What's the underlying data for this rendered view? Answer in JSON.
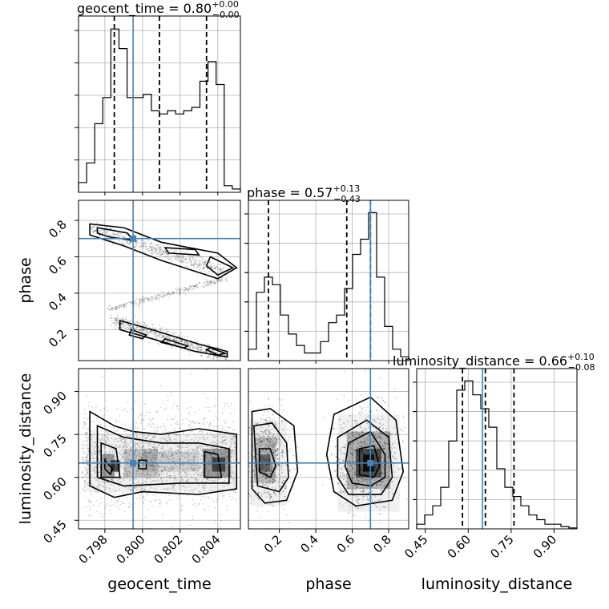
{
  "chart_data": {
    "type": "corner",
    "parameters": [
      {
        "name": "geocent_time",
        "xlabel": "geocent_time",
        "ylabel": "",
        "range": [
          0.7966,
          0.8052
        ],
        "ticks": [
          0.798,
          0.8,
          0.802,
          0.804
        ],
        "tick_labels": [
          "0.798",
          "0.800",
          "0.802",
          "0.804"
        ],
        "truth": 0.7995,
        "quantiles": [
          0.7985,
          0.8009,
          0.8034
        ],
        "title": {
          "prefix": "geocent_time = ",
          "value": "0.80",
          "plus": "+0.00",
          "minus": "−0.00"
        },
        "hist": [
          0.3,
          0.9,
          2.1,
          2.9,
          5.0,
          4.4,
          2.9,
          2.9,
          3.0,
          2.5,
          2.4,
          2.5,
          2.4,
          2.5,
          2.6,
          3.4,
          4.0,
          3.3,
          0.2,
          0.1
        ]
      },
      {
        "name": "phase",
        "xlabel": "phase",
        "ylabel": "phase",
        "range": [
          0.03,
          0.91
        ],
        "ticks": [
          0.2,
          0.4,
          0.6,
          0.8
        ],
        "tick_labels": [
          "0.2",
          "0.4",
          "0.6",
          "0.8"
        ],
        "truth": 0.7,
        "quantiles": [
          0.14,
          0.57,
          0.7
        ],
        "title": {
          "prefix": "phase = ",
          "value": "0.57",
          "plus": "+0.13",
          "minus": "−0.43"
        },
        "hist": [
          0.3,
          1.8,
          2.2,
          2.0,
          1.2,
          0.7,
          0.4,
          0.2,
          0.2,
          0.5,
          1.0,
          1.2,
          1.9,
          2.8,
          3.2,
          3.9,
          2.2,
          0.9,
          0.3,
          0.1
        ]
      },
      {
        "name": "luminosity_distance",
        "xlabel": "luminosity_distance",
        "ylabel": "luminosity_distance",
        "range": [
          0.42,
          0.98
        ],
        "ticks": [
          0.45,
          0.6,
          0.75,
          0.9
        ],
        "tick_labels": [
          "0.45",
          "0.60",
          "0.75",
          "0.90"
        ],
        "truth": 0.65,
        "quantiles": [
          0.58,
          0.66,
          0.76
        ],
        "title": {
          "prefix": "luminosity_distance = ",
          "value": "0.66",
          "plus": "+0.10",
          "minus": "−0.08"
        },
        "hist": [
          0.1,
          0.3,
          0.5,
          0.9,
          1.9,
          3.0,
          3.2,
          2.9,
          2.6,
          2.2,
          1.3,
          0.9,
          0.7,
          0.5,
          0.3,
          0.2,
          0.1,
          0.1,
          0.05,
          0.02
        ]
      }
    ],
    "truth_color": "#4682b4",
    "grid": true,
    "contour_levels": 4
  }
}
